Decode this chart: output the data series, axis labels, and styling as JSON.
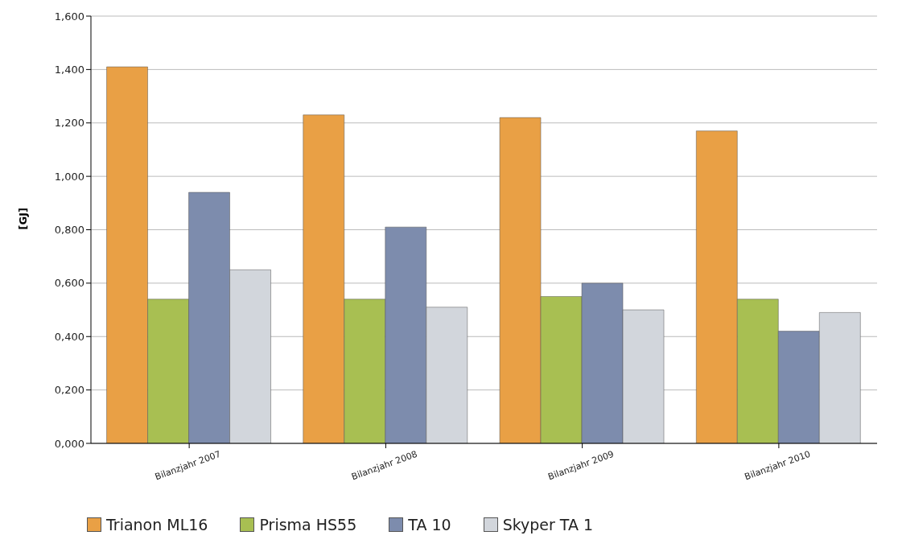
{
  "chart_data": {
    "type": "bar",
    "ylabel": "[GJ]",
    "categories": [
      "Bilanzjahr 2007",
      "Bilanzjahr 2008",
      "Bilanzjahr 2009",
      "Bilanzjahr 2010"
    ],
    "series": [
      {
        "name": "Trianon ML16",
        "color": "#e9a045",
        "values": [
          1.41,
          1.23,
          1.22,
          1.17
        ]
      },
      {
        "name": "Prisma HS55",
        "color": "#a8bf52",
        "values": [
          0.54,
          0.54,
          0.55,
          0.54
        ]
      },
      {
        "name": "TA 10",
        "color": "#7d8cad",
        "values": [
          0.94,
          0.81,
          0.6,
          0.42
        ]
      },
      {
        "name": "Skyper TA 1",
        "color": "#d2d6dc",
        "values": [
          0.65,
          0.51,
          0.5,
          0.49
        ]
      }
    ],
    "ylim": [
      0,
      1.6
    ],
    "yticks": [
      {
        "value": 0,
        "label": "0,000"
      },
      {
        "value": 0.2,
        "label": "0,200"
      },
      {
        "value": 0.4,
        "label": "0,400"
      },
      {
        "value": 0.6,
        "label": "0,600"
      },
      {
        "value": 0.8,
        "label": "0,800"
      },
      {
        "value": 1,
        "label": "1,000"
      },
      {
        "value": 1.2,
        "label": "1,200"
      },
      {
        "value": 1.4,
        "label": "1,400"
      },
      {
        "value": 1.6,
        "label": "1,600"
      }
    ],
    "grid": "y",
    "legend": "bottom left"
  }
}
